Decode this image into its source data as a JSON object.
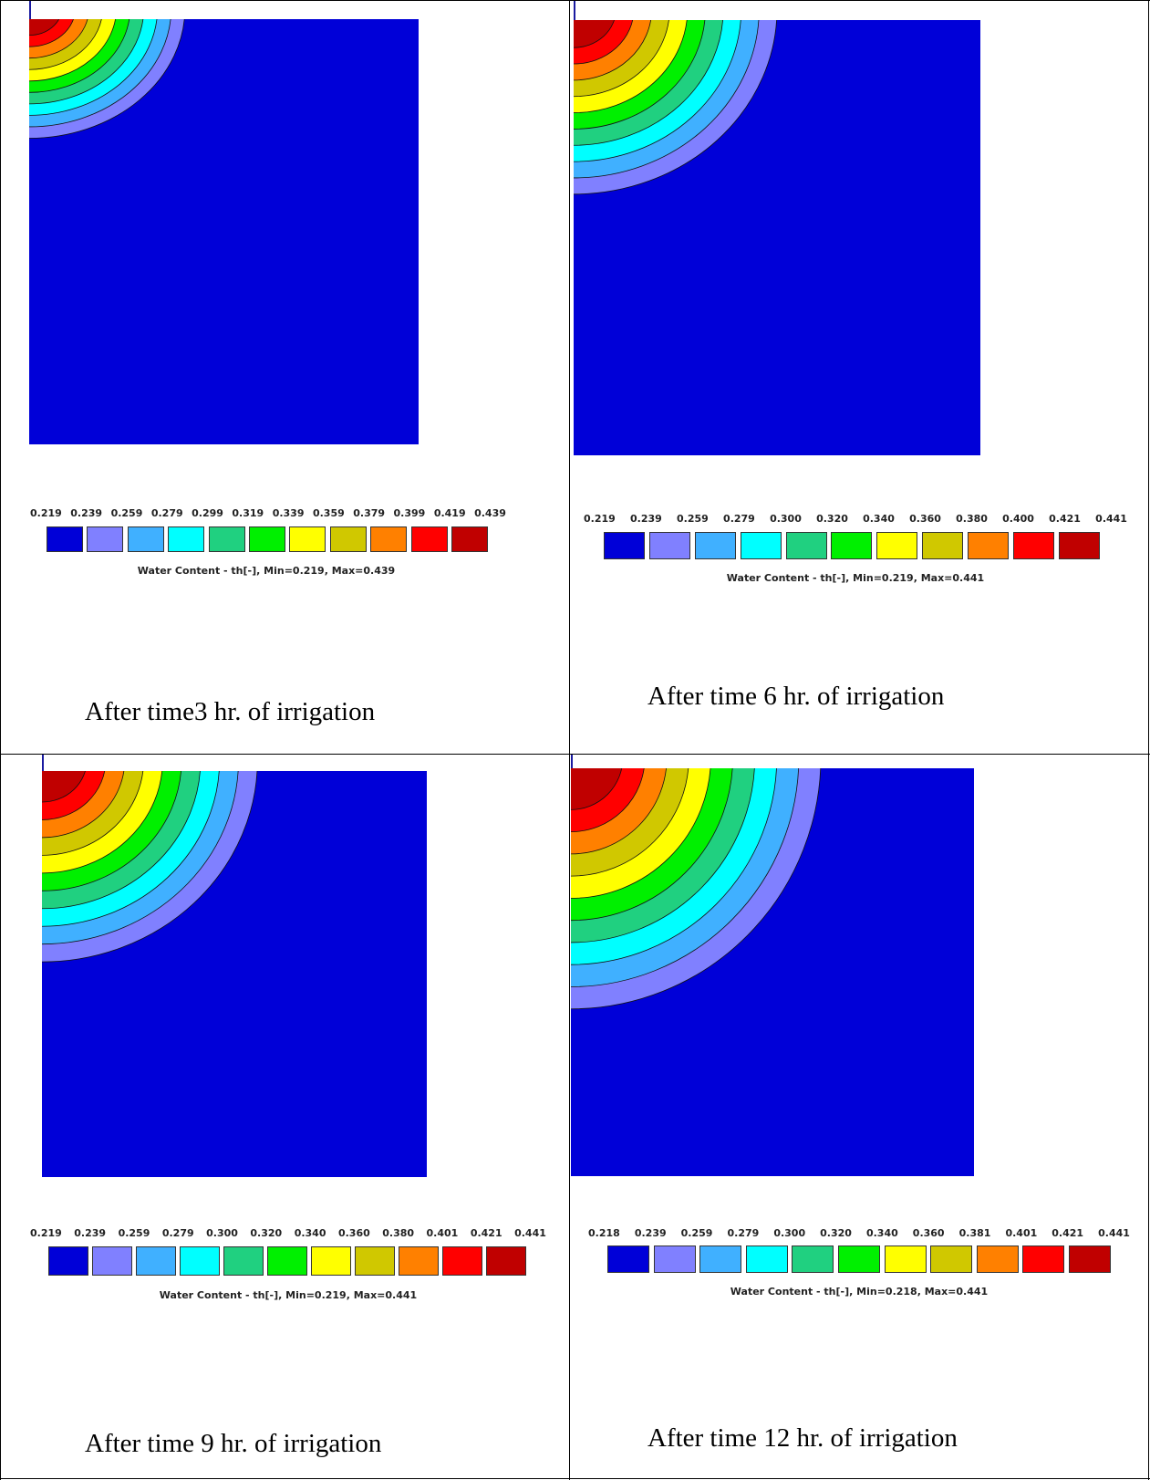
{
  "colors": [
    "#0000d8",
    "#8080ff",
    "#40b0ff",
    "#00ffff",
    "#20d080",
    "#00f000",
    "#ffff00",
    "#d0c800",
    "#ff8000",
    "#ff0000",
    "#c00000"
  ],
  "chart_data": [
    {
      "type": "heatmap",
      "caption": "After time3 hr. of irrigation",
      "legend_title": "Water Content  - th[-], Min=0.219, Max=0.439",
      "legend_ticks": [
        "0.219",
        "0.239",
        "0.259",
        "0.279",
        "0.299",
        "0.319",
        "0.339",
        "0.359",
        "0.379",
        "0.399",
        "0.419",
        "0.439"
      ],
      "min": 0.219,
      "max": 0.439,
      "wetting_front_extent": [
        0.4,
        0.28
      ]
    },
    {
      "type": "heatmap",
      "caption": "After time 6 hr. of irrigation",
      "legend_title": "Water Content  - th[-], Min=0.219, Max=0.441",
      "legend_ticks": [
        "0.219",
        "0.239",
        "0.259",
        "0.279",
        "0.300",
        "0.320",
        "0.340",
        "0.360",
        "0.380",
        "0.400",
        "0.421",
        "0.441"
      ],
      "min": 0.219,
      "max": 0.441,
      "wetting_front_extent": [
        0.5,
        0.4
      ]
    },
    {
      "type": "heatmap",
      "caption": "After time 9 hr. of irrigation",
      "legend_title": "Water Content  - th[-], Min=0.219, Max=0.441",
      "legend_ticks": [
        "0.219",
        "0.239",
        "0.259",
        "0.279",
        "0.300",
        "0.320",
        "0.340",
        "0.360",
        "0.380",
        "0.401",
        "0.421",
        "0.441"
      ],
      "min": 0.219,
      "max": 0.441,
      "wetting_front_extent": [
        0.56,
        0.47
      ]
    },
    {
      "type": "heatmap",
      "caption": "After time 12 hr. of irrigation",
      "legend_title": "Water Content  - th[-], Min=0.218, Max=0.441",
      "legend_ticks": [
        "0.218",
        "0.239",
        "0.259",
        "0.279",
        "0.300",
        "0.320",
        "0.340",
        "0.360",
        "0.381",
        "0.401",
        "0.421",
        "0.441"
      ],
      "min": 0.218,
      "max": 0.441,
      "wetting_front_extent": [
        0.62,
        0.59
      ]
    }
  ]
}
